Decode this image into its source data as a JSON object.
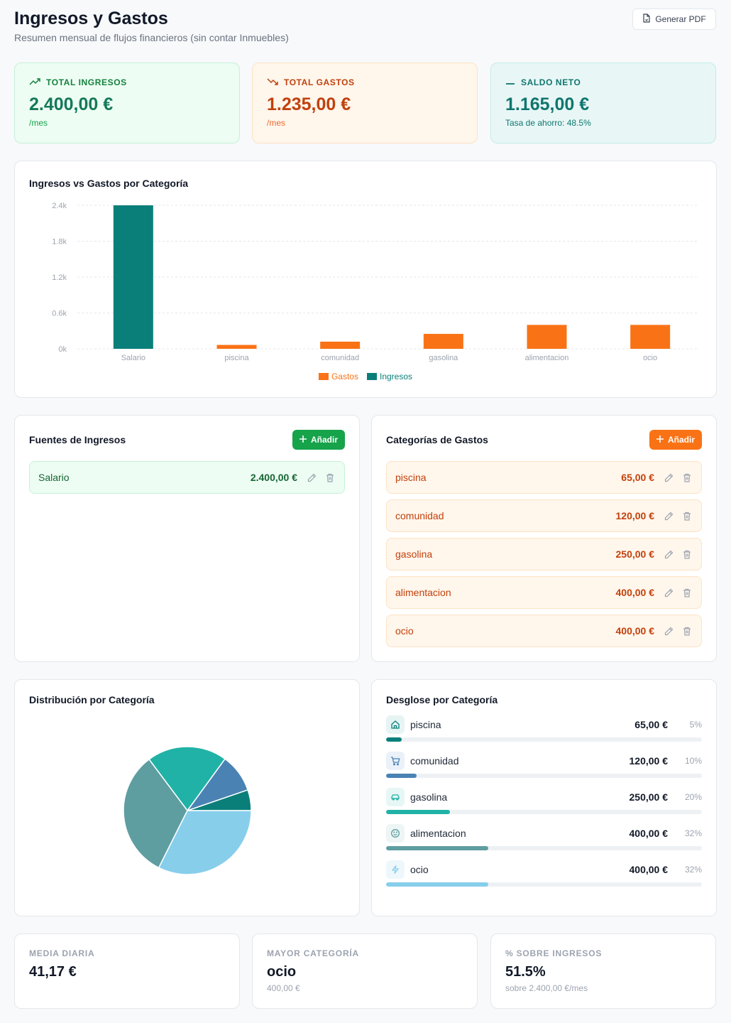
{
  "header": {
    "title": "Ingresos y Gastos",
    "subtitle": "Resumen mensual de flujos financieros (sin contar Inmuebles)",
    "pdf_button": "Generar PDF"
  },
  "summary": {
    "income": {
      "label": "TOTAL INGRESOS",
      "value": "2.400,00 €",
      "sub": "/mes"
    },
    "expense": {
      "label": "TOTAL GASTOS",
      "value": "1.235,00 €",
      "sub": "/mes"
    },
    "net": {
      "label": "SALDO NETO",
      "value": "1.165,00 €",
      "sub": "Tasa de ahorro: 48.5%"
    }
  },
  "colors": {
    "income": "#0a7f7a",
    "expense": "#f97316",
    "green_accent": "#16a34a",
    "pie": [
      "#0a7f7a",
      "#4a82b4",
      "#20b2a6",
      "#5f9ea0",
      "#87ceeb"
    ]
  },
  "chart_data": {
    "type": "bar",
    "title": "Ingresos vs Gastos por Categoría",
    "categories": [
      "Salario",
      "piscina",
      "comunidad",
      "gasolina",
      "alimentacion",
      "ocio"
    ],
    "series": [
      {
        "name": "Gastos",
        "values": [
          0,
          65,
          120,
          250,
          400,
          400
        ]
      },
      {
        "name": "Ingresos",
        "values": [
          2400,
          0,
          0,
          0,
          0,
          0
        ]
      }
    ],
    "yticks": [
      "0k",
      "0.6k",
      "1.2k",
      "1.8k",
      "2.4k"
    ],
    "ylim": [
      0,
      2400
    ],
    "grid": true,
    "legend": "bottom"
  },
  "income_sources": {
    "title": "Fuentes de Ingresos",
    "add_label": "Añadir",
    "items": [
      {
        "name": "Salario",
        "amount": "2.400,00 €"
      }
    ]
  },
  "expense_categories": {
    "title": "Categorías de Gastos",
    "add_label": "Añadir",
    "items": [
      {
        "name": "piscina",
        "amount": "65,00 €"
      },
      {
        "name": "comunidad",
        "amount": "120,00 €"
      },
      {
        "name": "gasolina",
        "amount": "250,00 €"
      },
      {
        "name": "alimentacion",
        "amount": "400,00 €"
      },
      {
        "name": "ocio",
        "amount": "400,00 €"
      }
    ]
  },
  "distribution": {
    "title": "Distribución por Categoría",
    "pie_values": [
      65,
      120,
      250,
      400,
      400
    ]
  },
  "breakdown": {
    "title": "Desglose por Categoría",
    "items": [
      {
        "name": "piscina",
        "amount": "65,00 €",
        "pct": "5%",
        "fraction": 0.05,
        "icon": "home-icon",
        "color": "#0a7f7a"
      },
      {
        "name": "comunidad",
        "amount": "120,00 €",
        "pct": "10%",
        "fraction": 0.097,
        "icon": "cart-icon",
        "color": "#4a82b4"
      },
      {
        "name": "gasolina",
        "amount": "250,00 €",
        "pct": "20%",
        "fraction": 0.202,
        "icon": "car-icon",
        "color": "#20b2a6"
      },
      {
        "name": "alimentacion",
        "amount": "400,00 €",
        "pct": "32%",
        "fraction": 0.324,
        "icon": "smile-icon",
        "color": "#5f9ea0"
      },
      {
        "name": "ocio",
        "amount": "400,00 €",
        "pct": "32%",
        "fraction": 0.324,
        "icon": "zap-icon",
        "color": "#87ceeb"
      }
    ]
  },
  "stats": {
    "daily": {
      "label": "MEDIA DIARIA",
      "value": "41,17 €"
    },
    "top_category": {
      "label": "MAYOR CATEGORÍA",
      "value": "ocio",
      "sub": "400,00 €"
    },
    "pct_income": {
      "label": "% SOBRE INGRESOS",
      "value": "51.5%",
      "sub": "sobre 2.400,00 €/mes"
    }
  }
}
